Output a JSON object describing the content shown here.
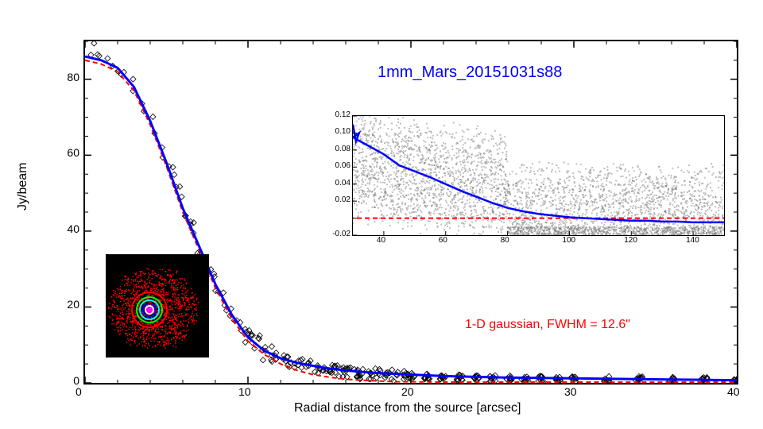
{
  "main": {
    "title": "1mm_Mars_20151031s88",
    "title_color": "#0000ff",
    "title_fontsize": 20,
    "xlabel": "Radial distance from the source [arcsec]",
    "ylabel": "Jy/beam",
    "label_fontsize": 16,
    "xlim": [
      0,
      40
    ],
    "ylim": [
      0,
      90
    ],
    "xtick_step": 10,
    "ytick_step": 20,
    "xticks": [
      0,
      10,
      20,
      30,
      40
    ],
    "yticks": [
      0,
      20,
      40,
      60,
      80
    ],
    "background_color": "#ffffff",
    "border_color": "#000000",
    "scatter": {
      "marker": "diamond",
      "marker_size": 5,
      "marker_color": "#000000",
      "marker_fill": "none",
      "x": [
        0.3,
        0.5,
        0.7,
        1,
        1.3,
        1.6,
        1.9,
        2.2,
        2.5,
        2.8,
        3.1,
        3.4,
        3.7,
        4,
        4.3,
        4.6,
        4.9,
        5.2,
        5.5,
        5.8,
        6.1,
        6.4,
        6.7,
        7,
        7.3,
        7.6,
        7.9,
        8.2,
        8.5,
        8.8,
        9.1,
        9.4,
        9.7,
        10,
        10.3,
        10.6,
        11,
        11.4,
        11.8,
        12.2,
        12.6,
        13,
        13.4,
        13.8,
        14.2,
        14.6,
        15,
        15.4,
        15.8,
        16.2,
        16.6,
        17,
        17.5,
        18,
        18.5,
        19,
        19.5,
        20,
        21,
        22,
        23,
        24,
        25,
        26,
        27,
        28,
        29,
        30,
        32,
        34,
        36,
        38,
        40
      ],
      "y": [
        87,
        88,
        86,
        85,
        84.5,
        84,
        83,
        82,
        81,
        79,
        77,
        74,
        72,
        69,
        66,
        63,
        60,
        57,
        53,
        50,
        46,
        43,
        40,
        36,
        33,
        30,
        27,
        24,
        21.5,
        19,
        17,
        15,
        13.5,
        12,
        11,
        10,
        8.5,
        7.5,
        7,
        6.3,
        5.7,
        5.2,
        4.8,
        4.4,
        4,
        3.7,
        3.4,
        3.1,
        2.9,
        2.7,
        2.5,
        2.4,
        2.2,
        2.3,
        2.1,
        2,
        2.1,
        1.8,
        1.7,
        1.5,
        1.4,
        1.3,
        1.2,
        1.2,
        1.1,
        1.1,
        1,
        1,
        0.9,
        0.9,
        0.8,
        0.8,
        0.7
      ]
    },
    "blue_line": {
      "color": "#0000ff",
      "width": 3,
      "dash": "none",
      "x": [
        0,
        1,
        2,
        3,
        4,
        5,
        6,
        7,
        8,
        9,
        10,
        11,
        12,
        13,
        14,
        15,
        16,
        17,
        18,
        19,
        20,
        22,
        24,
        26,
        28,
        30,
        32,
        34,
        36,
        38,
        40
      ],
      "y": [
        86,
        85,
        83,
        78,
        69,
        58,
        46,
        36,
        26,
        18,
        12,
        8.5,
        6.5,
        5.3,
        4.5,
        3.8,
        3.3,
        2.9,
        2.6,
        2.4,
        2.2,
        1.8,
        1.6,
        1.4,
        1.3,
        1.2,
        1.1,
        1,
        0.9,
        0.8,
        0.7
      ]
    },
    "red_line": {
      "color": "#ff0000",
      "width": 2,
      "dash": "6,4",
      "x": [
        0,
        1,
        2,
        3,
        4,
        5,
        6,
        7,
        8,
        9,
        10,
        11,
        12,
        13,
        14,
        15,
        16,
        17,
        18,
        19,
        20,
        22,
        24,
        26,
        28,
        30,
        32,
        34,
        36,
        38,
        40
      ],
      "y": [
        85,
        84,
        82,
        77,
        68,
        57,
        45,
        35,
        25,
        17,
        11,
        7.5,
        5,
        3.3,
        2.2,
        1.5,
        1,
        0.7,
        0.5,
        0.3,
        0.3,
        0.2,
        0.2,
        0.2,
        0.2,
        0.2,
        0.2,
        0.2,
        0.2,
        0.2,
        0.2
      ]
    },
    "gaussian_label": "1-D gaussian, FWHM = 12.6\"",
    "gaussian_label_color": "#ff0000"
  },
  "inset_chart": {
    "xlim": [
      30,
      150
    ],
    "ylim": [
      -0.02,
      0.12
    ],
    "xticks": [
      40,
      60,
      80,
      100,
      120,
      140
    ],
    "yticks": [
      -0.02,
      0.02,
      0.04,
      0.06,
      0.08,
      0.1,
      0.12
    ],
    "ytick_zero": 0.0,
    "scatter_color": "#808080",
    "scatter_size": 1.5,
    "scatter_count": 4000,
    "blue_line": {
      "color": "#0000ff",
      "width": 2.5,
      "x": [
        30,
        35,
        40,
        45,
        50,
        55,
        60,
        65,
        70,
        75,
        80,
        85,
        90,
        95,
        100,
        105,
        110,
        115,
        120,
        125,
        130,
        135,
        140,
        145,
        150
      ],
      "y": [
        0.095,
        0.085,
        0.075,
        0.062,
        0.055,
        0.048,
        0.04,
        0.032,
        0.025,
        0.018,
        0.012,
        0.008,
        0.005,
        0.003,
        0.001,
        0,
        -0.001,
        -0.002,
        -0.003,
        -0.003,
        -0.004,
        -0.004,
        -0.005,
        -0.005,
        -0.005
      ]
    },
    "red_line": {
      "color": "#ff0000",
      "width": 2,
      "dash": "6,4",
      "y": 0
    },
    "tick_fontsize": 10
  },
  "inset_image": {
    "bg": "#000000",
    "colors": [
      "#ff0000",
      "#00ff00",
      "#00ffff",
      "#0000ff",
      "#ffffff",
      "#ff00ff"
    ],
    "description": "beam-map-thumbnail"
  }
}
